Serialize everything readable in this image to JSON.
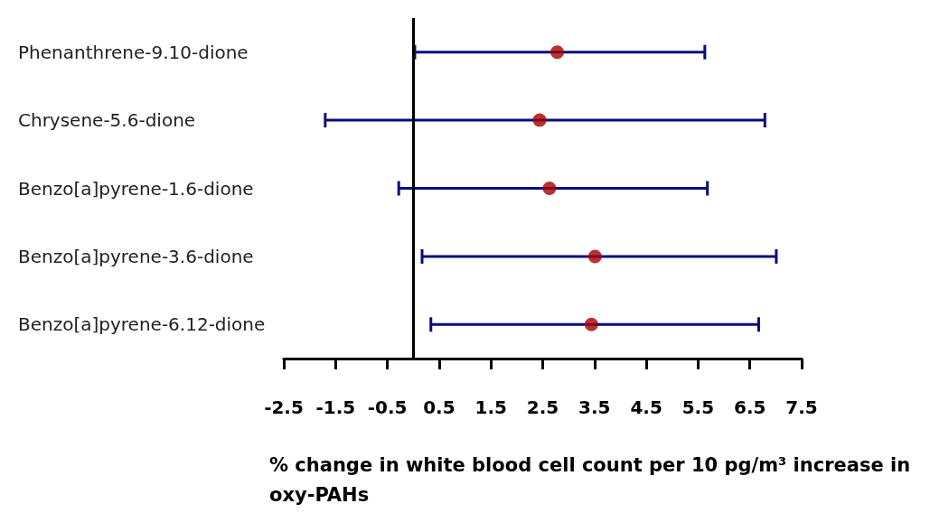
{
  "chart_data": {
    "type": "scatter",
    "orientation": "horizontal",
    "categories": [
      "Phenanthrene-9.10-dione",
      "Chrysene-5.6-dione",
      "Benzo[a]pyrene-1.6-dione",
      "Benzo[a]pyrene-3.6-dione",
      "Benzo[a]pyrene-6.12-dione"
    ],
    "series": [
      {
        "color": "#a50000",
        "values": [
          2.78,
          2.44,
          2.63,
          3.51,
          3.44
        ],
        "errors": [
          [
            0.03,
            5.63
          ],
          [
            -1.7,
            6.79
          ],
          [
            -0.28,
            5.68
          ],
          [
            0.17,
            7.01
          ],
          [
            0.34,
            6.67
          ]
        ]
      }
    ],
    "xlim": [
      -2.5,
      7.5
    ],
    "xticks": [
      -2.5,
      -1.5,
      -0.5,
      0.5,
      1.5,
      2.5,
      3.5,
      4.5,
      5.5,
      6.5,
      7.5
    ],
    "xlabel": "% change in white blood cell count per 10 pg/m³ increase in oxy-PAHs",
    "ref_lines": [
      {
        "axis": "x",
        "value": 0,
        "color": "#000000"
      }
    ],
    "marker": "circle",
    "grid": false
  }
}
